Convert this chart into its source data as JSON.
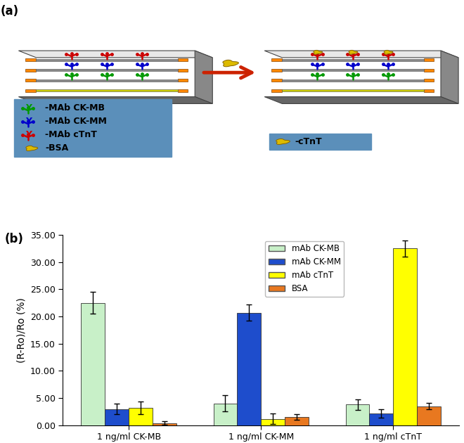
{
  "groups": [
    "1 ng/ml CK-MB",
    "1 ng/ml CK-MM",
    "1 ng/ml cTnT"
  ],
  "series": [
    "mAb CK-MB",
    "mAb CK-MM",
    "mAb cTnT",
    "BSA"
  ],
  "colors": [
    "#c8f0c8",
    "#1e4dcc",
    "#ffff00",
    "#e87820"
  ],
  "values": [
    [
      22.5,
      3.0,
      3.2,
      0.4
    ],
    [
      4.0,
      20.7,
      1.2,
      1.5
    ],
    [
      3.8,
      2.2,
      32.5,
      3.5
    ]
  ],
  "errors": [
    [
      2.0,
      1.0,
      1.2,
      0.3
    ],
    [
      1.5,
      1.5,
      1.0,
      0.5
    ],
    [
      1.0,
      0.8,
      1.5,
      0.6
    ]
  ],
  "ylabel": "(R-Ro)/Ro (%)",
  "ylim": [
    0,
    35
  ],
  "yticks": [
    0.0,
    5.0,
    10.0,
    15.0,
    20.0,
    25.0,
    30.0,
    35.0
  ],
  "bar_width": 0.18,
  "legend_labels": [
    "mAb CK-MB",
    "mAb CK-MM",
    "mAb cTnT",
    "BSA"
  ],
  "panel_a_label": "(a)",
  "panel_b_label": "(b)",
  "background_color": "#ffffff",
  "legend_edge_color": "#aaaaaa",
  "chip_top_color": "#e8e8e8",
  "chip_side_color": "#888888",
  "chip_front_color": "#666666",
  "electrode_color": "#ff8800",
  "channel_gray": "#888888",
  "channel_yellow": "#cccc00",
  "legend_bg": "#5b8fba",
  "ab_green": "#009900",
  "ab_blue": "#0000cc",
  "ab_red": "#cc0000",
  "blob_color": "#ddbb00",
  "arrow_color": "#cc2200"
}
